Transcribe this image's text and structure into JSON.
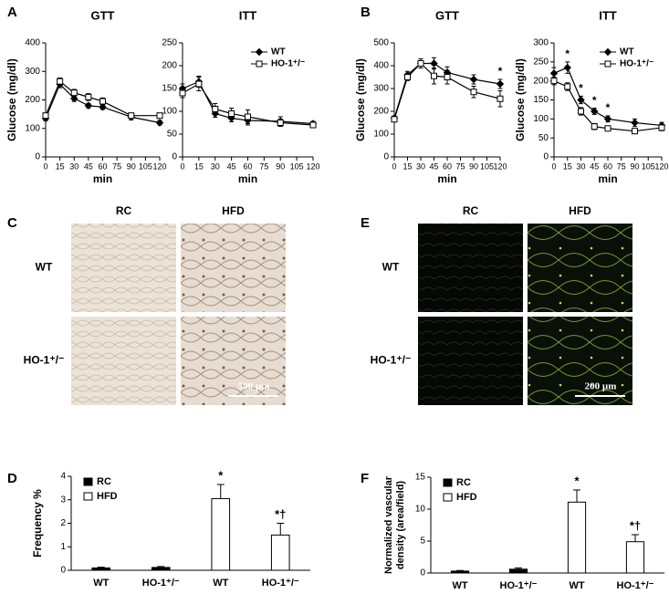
{
  "panels": [
    "A",
    "B",
    "C",
    "D",
    "E",
    "F"
  ],
  "chart_data": [
    {
      "type": "line",
      "title": "GTT",
      "x_label": "min",
      "y_label": "Glucose (mg/dl)",
      "x": [
        0,
        15,
        30,
        45,
        60,
        90,
        120
      ],
      "xlim": [
        0,
        120
      ],
      "xticks": [
        0,
        15,
        30,
        45,
        60,
        75,
        90,
        105,
        120
      ],
      "ylim": [
        0,
        400
      ],
      "yticks": [
        0,
        100,
        200,
        300,
        400
      ],
      "series": [
        {
          "color": "#000000",
          "marker": "diamond",
          "marker_fill": "#000000",
          "values": [
            135,
            255,
            205,
            180,
            175,
            140,
            120
          ],
          "errors": [
            8,
            12,
            10,
            8,
            8,
            10,
            8
          ]
        },
        {
          "color": "#000000",
          "marker": "square",
          "marker_fill": "#ffffff",
          "values": [
            145,
            265,
            225,
            210,
            195,
            145,
            145
          ],
          "errors": [
            8,
            12,
            12,
            12,
            12,
            8,
            6
          ]
        }
      ]
    },
    {
      "type": "line",
      "title": "ITT",
      "x_label": "min",
      "x": [
        0,
        15,
        30,
        45,
        60,
        90,
        120
      ],
      "xlim": [
        0,
        120
      ],
      "xticks": [
        0,
        15,
        30,
        45,
        60,
        75,
        90,
        105,
        120
      ],
      "ylim": [
        0,
        250
      ],
      "yticks": [
        0,
        50,
        100,
        150,
        200,
        250
      ],
      "series": [
        {
          "name": "WT",
          "color": "#000000",
          "marker": "diamond",
          "marker_fill": "#000000",
          "values": [
            150,
            165,
            95,
            85,
            80,
            78,
            73
          ],
          "errors": [
            10,
            12,
            8,
            8,
            10,
            10,
            5
          ]
        },
        {
          "name": "HO-1⁺/⁻",
          "color": "#000000",
          "marker": "square",
          "marker_fill": "#ffffff",
          "values": [
            140,
            160,
            105,
            95,
            88,
            75,
            70
          ],
          "errors": [
            10,
            15,
            12,
            12,
            15,
            8,
            5
          ]
        }
      ]
    },
    {
      "type": "line",
      "title": "GTT",
      "x_label": "min",
      "y_label": "Glucose (mg/dl)",
      "x": [
        0,
        15,
        30,
        45,
        60,
        90,
        120
      ],
      "xlim": [
        0,
        120
      ],
      "xticks": [
        0,
        15,
        30,
        45,
        60,
        75,
        90,
        105,
        120
      ],
      "ylim": [
        0,
        500
      ],
      "yticks": [
        0,
        100,
        200,
        300,
        400,
        500
      ],
      "series": [
        {
          "color": "#000000",
          "marker": "diamond",
          "marker_fill": "#000000",
          "values": [
            170,
            360,
            410,
            410,
            370,
            340,
            320
          ],
          "errors": [
            10,
            15,
            20,
            25,
            25,
            20,
            20
          ],
          "annotations": [
            null,
            null,
            null,
            null,
            null,
            null,
            "*"
          ]
        },
        {
          "color": "#000000",
          "marker": "square",
          "marker_fill": "#ffffff",
          "values": [
            165,
            350,
            410,
            355,
            350,
            285,
            255
          ],
          "errors": [
            10,
            15,
            20,
            35,
            30,
            25,
            35
          ]
        }
      ]
    },
    {
      "type": "line",
      "title": "ITT",
      "x_label": "min",
      "y_label": "Glucose (mg/dl)",
      "x": [
        0,
        15,
        30,
        45,
        60,
        90,
        120
      ],
      "xlim": [
        0,
        120
      ],
      "xticks": [
        0,
        15,
        30,
        45,
        60,
        75,
        90,
        105,
        120
      ],
      "ylim": [
        0,
        300
      ],
      "yticks": [
        0,
        50,
        100,
        150,
        200,
        250,
        300
      ],
      "series": [
        {
          "name": "WT",
          "color": "#000000",
          "marker": "diamond",
          "marker_fill": "#000000",
          "values": [
            220,
            235,
            150,
            120,
            100,
            90,
            83
          ],
          "errors": [
            15,
            15,
            10,
            8,
            8,
            10,
            8
          ],
          "annotations": [
            null,
            "*",
            "*",
            "*",
            "*",
            null,
            null
          ]
        },
        {
          "name": "HO-1⁺/⁻",
          "color": "#000000",
          "marker": "square",
          "marker_fill": "#ffffff",
          "values": [
            200,
            185,
            120,
            80,
            75,
            68,
            77
          ],
          "errors": [
            10,
            10,
            10,
            8,
            6,
            6,
            8
          ]
        }
      ]
    },
    {
      "type": "bar",
      "y_label": "Frequency %",
      "categories": [
        "WT",
        "HO-1⁺/⁻",
        "WT",
        "HO-1⁺/⁻"
      ],
      "ylim": [
        0,
        4
      ],
      "yticks": [
        0,
        1,
        2,
        3,
        4
      ],
      "series": [
        {
          "name": "RC",
          "color": "#000000",
          "values": [
            0.1,
            0.12,
            null,
            null
          ],
          "errors": [
            0.03,
            0.04,
            null,
            null
          ]
        },
        {
          "name": "HFD",
          "color": "#ffffff",
          "values": [
            null,
            null,
            3.05,
            1.5
          ],
          "errors": [
            null,
            null,
            0.6,
            0.5
          ],
          "annotations": [
            null,
            null,
            "*",
            "*†"
          ]
        }
      ]
    },
    {
      "type": "bar",
      "y_label": [
        "Normalized vascular",
        "density (area/field)"
      ],
      "categories": [
        "WT",
        "HO-1⁺/⁻",
        "WT",
        "HO-1⁺/⁻"
      ],
      "ylim": [
        0,
        15
      ],
      "yticks": [
        0,
        5,
        10,
        15
      ],
      "series": [
        {
          "name": "RC",
          "color": "#000000",
          "values": [
            0.3,
            0.6,
            null,
            null
          ],
          "errors": [
            0.1,
            0.2,
            null,
            null
          ]
        },
        {
          "name": "HFD",
          "color": "#ffffff",
          "values": [
            null,
            null,
            11.1,
            4.9
          ],
          "errors": [
            null,
            null,
            1.9,
            1.1
          ],
          "annotations": [
            null,
            null,
            "*",
            "*†"
          ]
        }
      ]
    }
  ],
  "images": [
    {
      "style": "brightfield",
      "columns": [
        "RC",
        "HFD"
      ],
      "rows": [
        "WT",
        "HO-1⁺/⁻"
      ],
      "scale_bar": "500 µm"
    },
    {
      "style": "fluorescence",
      "columns": [
        "RC",
        "HFD"
      ],
      "rows": [
        "WT",
        "HO-1⁺/⁻"
      ],
      "scale_bar": "200 µm"
    }
  ]
}
